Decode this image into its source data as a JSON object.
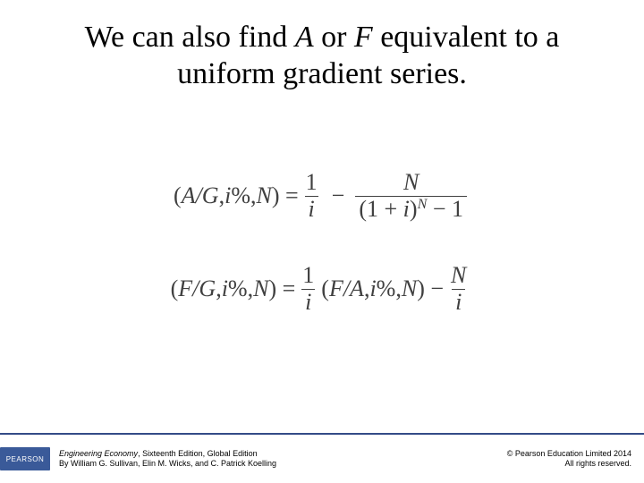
{
  "title": {
    "pre": "We can also find ",
    "varA": "A",
    "mid1": " or ",
    "varF": "F",
    "post": " equivalent to a uniform gradient series."
  },
  "equations": {
    "eq1": {
      "lhs_open": "(",
      "lhs_ratio": "A/G",
      "lhs_sep1": ",",
      "lhs_i": " i",
      "lhs_pct": "%",
      "lhs_sep2": ",",
      "lhs_N": " N",
      "lhs_close": ") =",
      "frac1_num": "1",
      "frac1_den": "i",
      "minus": "−",
      "frac2_num": "N",
      "frac2_den_open": "(1 + ",
      "frac2_den_i": "i",
      "frac2_den_close_paren": ")",
      "frac2_den_exp": "N",
      "frac2_den_tail": " − 1"
    },
    "eq2": {
      "lhs_open": "(",
      "lhs_ratio": "F/G",
      "lhs_sep1": ",",
      "lhs_i": " i",
      "lhs_pct": "%",
      "lhs_sep2": ",",
      "lhs_N": " N",
      "lhs_close": ") =",
      "frac1_num": "1",
      "frac1_den": "i",
      "mid_open": "(",
      "mid_ratio": "F/A",
      "mid_sep1": ",",
      "mid_i": " i",
      "mid_pct": "%",
      "mid_sep2": ",",
      "mid_N": " N",
      "mid_close": ") −",
      "frac2_num": "N",
      "frac2_den": "i"
    }
  },
  "footer": {
    "logo_text": "PEARSON",
    "book_title": "Engineering Economy",
    "book_edition": ", Sixteenth Edition, Global Edition",
    "book_authors": "By William G. Sullivan, Elin M. Wicks, and C. Patrick Koelling",
    "copyright_line1": "© Pearson Education Limited 2014",
    "copyright_line2": "All rights reserved."
  },
  "colors": {
    "text_title": "#000000",
    "text_eq": "#404040",
    "rule": "#344b87",
    "logo_bg": "#3a5a99",
    "background": "#ffffff"
  },
  "typography": {
    "title_fontsize_pt": 26,
    "eq_fontsize_pt": 20,
    "footer_fontsize_pt": 7
  }
}
